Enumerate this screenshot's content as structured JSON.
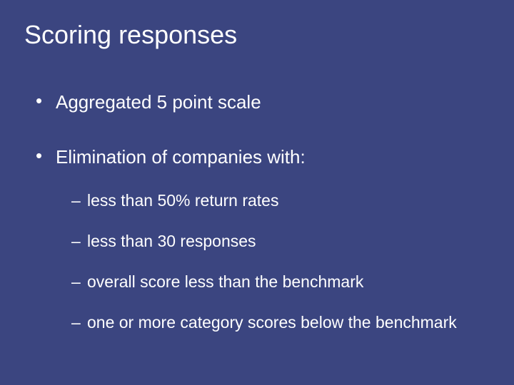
{
  "background_color": "#3b4580",
  "text_color": "#ffffff",
  "title_fontsize": 36,
  "bullet_fontsize": 26,
  "sub_bullet_fontsize": 23,
  "font_family": "Arial",
  "title": "Scoring responses",
  "bullets": [
    {
      "text": "Aggregated 5 point scale"
    },
    {
      "text": "Elimination of companies with:",
      "sub": [
        "less than 50% return rates",
        "less than 30 responses",
        "overall score less than the benchmark",
        "one or more category scores below the benchmark"
      ]
    }
  ]
}
